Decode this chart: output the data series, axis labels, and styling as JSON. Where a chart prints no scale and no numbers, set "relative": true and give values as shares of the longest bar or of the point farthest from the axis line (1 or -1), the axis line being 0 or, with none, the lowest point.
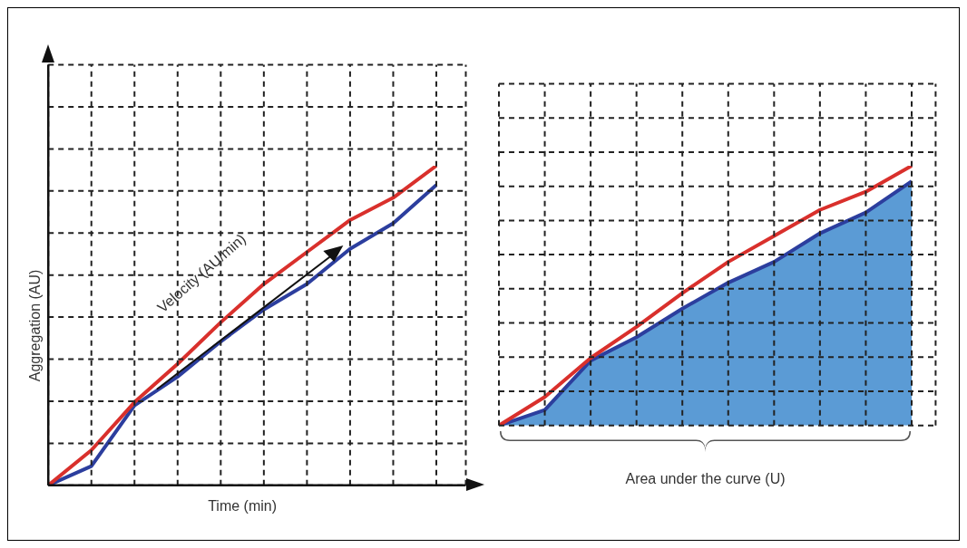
{
  "chart_data": [
    {
      "type": "line",
      "xlabel": "Time (min)",
      "ylabel": "Aggregation (AU)",
      "relative": true,
      "grid": true,
      "categories": [
        null,
        null,
        null,
        null,
        null,
        null,
        null,
        null,
        null,
        null
      ],
      "annotations": [
        "Velocity (AU/min)"
      ],
      "series": [
        {
          "color": "#d9302c",
          "values": [
            0,
            0.11,
            0.26,
            0.38,
            0.51,
            0.63,
            0.73,
            0.83,
            0.9,
            1
          ]
        },
        {
          "color": "#2c3e9e",
          "values": [
            0,
            0.06,
            0.25,
            0.34,
            0.45,
            0.55,
            0.63,
            0.74,
            0.82,
            0.94
          ]
        }
      ]
    },
    {
      "type": "line",
      "xlabel": "Area under the curve (U)",
      "relative": true,
      "grid": true,
      "categories": [
        null,
        null,
        null,
        null,
        null,
        null,
        null,
        null,
        null,
        null
      ],
      "series": [
        {
          "color": "#d9302c",
          "values": [
            0,
            0.11,
            0.26,
            0.38,
            0.51,
            0.63,
            0.73,
            0.83,
            0.9,
            1
          ]
        },
        {
          "type": "area",
          "color": "#2c3e9e",
          "values": [
            0,
            0.06,
            0.25,
            0.34,
            0.45,
            0.55,
            0.63,
            0.74,
            0.82,
            0.94
          ]
        }
      ]
    }
  ]
}
